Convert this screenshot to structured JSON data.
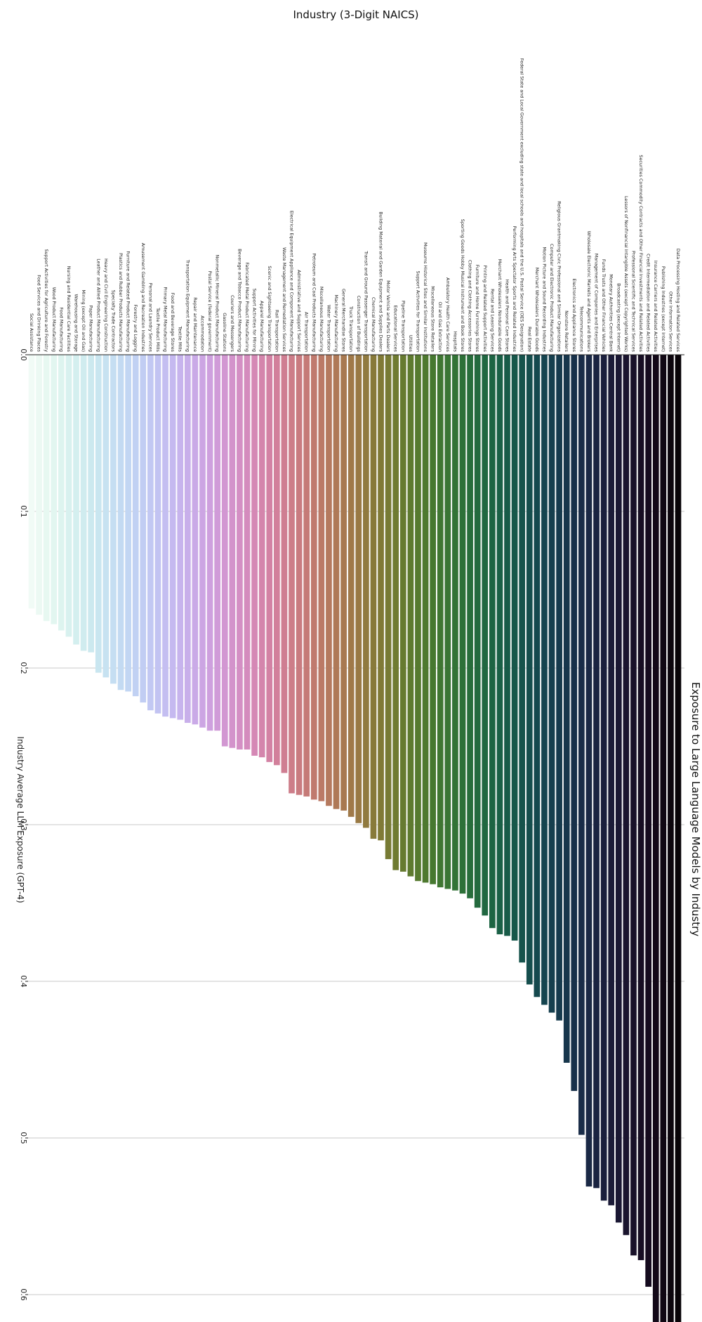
{
  "chart_data": {
    "type": "bar",
    "orientation": "rotated-vertical",
    "title": "Exposure to Large Language Models by Industry",
    "xlabel": "Industry (3-Digit NAICS)",
    "ylabel": "Industry Average LLM Exposure (GPT-4)",
    "ylim": [
      0,
      0.65
    ],
    "yticks": [
      "0.0",
      "0.1",
      "0.2",
      "0.3",
      "0.4",
      "0.5",
      "0.6"
    ],
    "grid": true,
    "categories": [
      "Data Processing Hosting and Related Services",
      "Other Information Services",
      "Publishing Industries (except Internet)",
      "Insurance Carriers and Related Activities",
      "Credit Intermediation and Related Activities",
      "Securities Commodity Contracts and Other Financial Investments and Related Activities",
      "Professional Scientific and Technical Services",
      "Lessors of Nonfinancial Intangible Assets (except Copyrighted Works)",
      "Broadcasting (except Internet)",
      "Monetary Authorities-Central Bank",
      "Funds Trusts and Other Financial Vehicles",
      "Management of Companies and Enterprises",
      "Wholesale Electronic Markets and Agents and Brokers",
      "Telecommunications",
      "Electronics and Appliance Stores",
      "Nonstore Retailers",
      "Religious Grantmaking Civic Professional and Similar Organizations",
      "Computer and Electronic Product Manufacturing",
      "Motion Picture and Sound Recording Industries",
      "Merchant Wholesalers Durable Goods",
      "Real Estate",
      "Federal State and Local Government excluding state and local schools and hospitals and the U.S. Postal Service (OES Designation)",
      "Performing Arts Spectator Sports and Related Industries",
      "Health and Personal Care Stores",
      "Merchant Wholesalers Nondurable Goods",
      "Rental and Leasing Services",
      "Printing and Related Support Activities",
      "Furniture and Home Furnishings Stores",
      "Clothing and Clothing Accessories Stores",
      "Sporting Goods Hobby Musical Instrument and Book Stores",
      "Hospitals",
      "Ambulatory Health Care Services",
      "Oil and Gas Extraction",
      "Miscellaneous Store Retailers",
      "Museums Historical Sites and Similar Institutions",
      "Support Activities for Transportation",
      "Utilities",
      "Pipeline Transportation",
      "Educational Services",
      "Motor Vehicle and Parts Dealers",
      "Building Material and Garden Equipment and Supplies Dealers",
      "Chemical Manufacturing",
      "Transit and Ground Passenger Transportation",
      "Construction of Buildings",
      "Truck Transportation",
      "General Merchandise Stores",
      "Machinery Manufacturing",
      "Water Transportation",
      "Miscellaneous Manufacturing",
      "Petroleum and Coal Products Manufacturing",
      "Air Transportation",
      "Administrative and Support Services",
      "Electrical Equipment Appliance and Component Manufacturing",
      "Waste Management and Remediation Services",
      "Rail Transportation",
      "Scenic and Sightseeing Transportation",
      "Apparel Manufacturing",
      "Support Activities for Mining",
      "Fabricated Metal Product Manufacturing",
      "Beverage and Tobacco Product Manufacturing",
      "Couriers and Messengers",
      "Gasoline Stations",
      "Nonmetallic Mineral Product Manufacturing",
      "Postal Service (federal government)",
      "Accommodation",
      "Repair and Maintenance",
      "Transportation Equipment Manufacturing",
      "Textile Mills",
      "Food and Beverage Stores",
      "Primary Metal Manufacturing",
      "Textile Product Mills",
      "Personal and Laundry Services",
      "Amusement Gambling and Recreation Industries",
      "Forestry and Logging",
      "Furniture and Related Product Manufacturing",
      "Plastics and Rubber Products Manufacturing",
      "Specialty Trade Contractors",
      "Heavy and Civil Engineering Construction",
      "Leather and Allied Product Manufacturing",
      "Paper Manufacturing",
      "Mining (except Oil and Gas)",
      "Warehousing and Storage",
      "Nursing and Residential Care Facilities",
      "Food Manufacturing",
      "Wood Product Manufacturing",
      "Support Activities for Agriculture and Forestry",
      "Food Services and Drinking Places",
      "Social Assistance"
    ],
    "values": [
      0.64,
      0.634,
      0.63,
      0.62,
      0.595,
      0.578,
      0.575,
      0.562,
      0.554,
      0.543,
      0.54,
      0.532,
      0.531,
      0.498,
      0.47,
      0.452,
      0.425,
      0.42,
      0.415,
      0.41,
      0.402,
      0.388,
      0.374,
      0.371,
      0.37,
      0.366,
      0.358,
      0.353,
      0.347,
      0.344,
      0.342,
      0.341,
      0.34,
      0.338,
      0.337,
      0.336,
      0.333,
      0.33,
      0.329,
      0.322,
      0.31,
      0.309,
      0.302,
      0.299,
      0.295,
      0.291,
      0.29,
      0.288,
      0.285,
      0.284,
      0.282,
      0.281,
      0.28,
      0.267,
      0.262,
      0.26,
      0.257,
      0.256,
      0.252,
      0.252,
      0.251,
      0.25,
      0.24,
      0.24,
      0.238,
      0.236,
      0.235,
      0.233,
      0.232,
      0.231,
      0.229,
      0.227,
      0.222,
      0.218,
      0.215,
      0.214,
      0.21,
      0.206,
      0.203,
      0.19,
      0.189,
      0.185,
      0.18,
      0.176,
      0.172,
      0.17,
      0.166,
      0.162
    ],
    "colormap": "cubehelix (dark to light)"
  }
}
